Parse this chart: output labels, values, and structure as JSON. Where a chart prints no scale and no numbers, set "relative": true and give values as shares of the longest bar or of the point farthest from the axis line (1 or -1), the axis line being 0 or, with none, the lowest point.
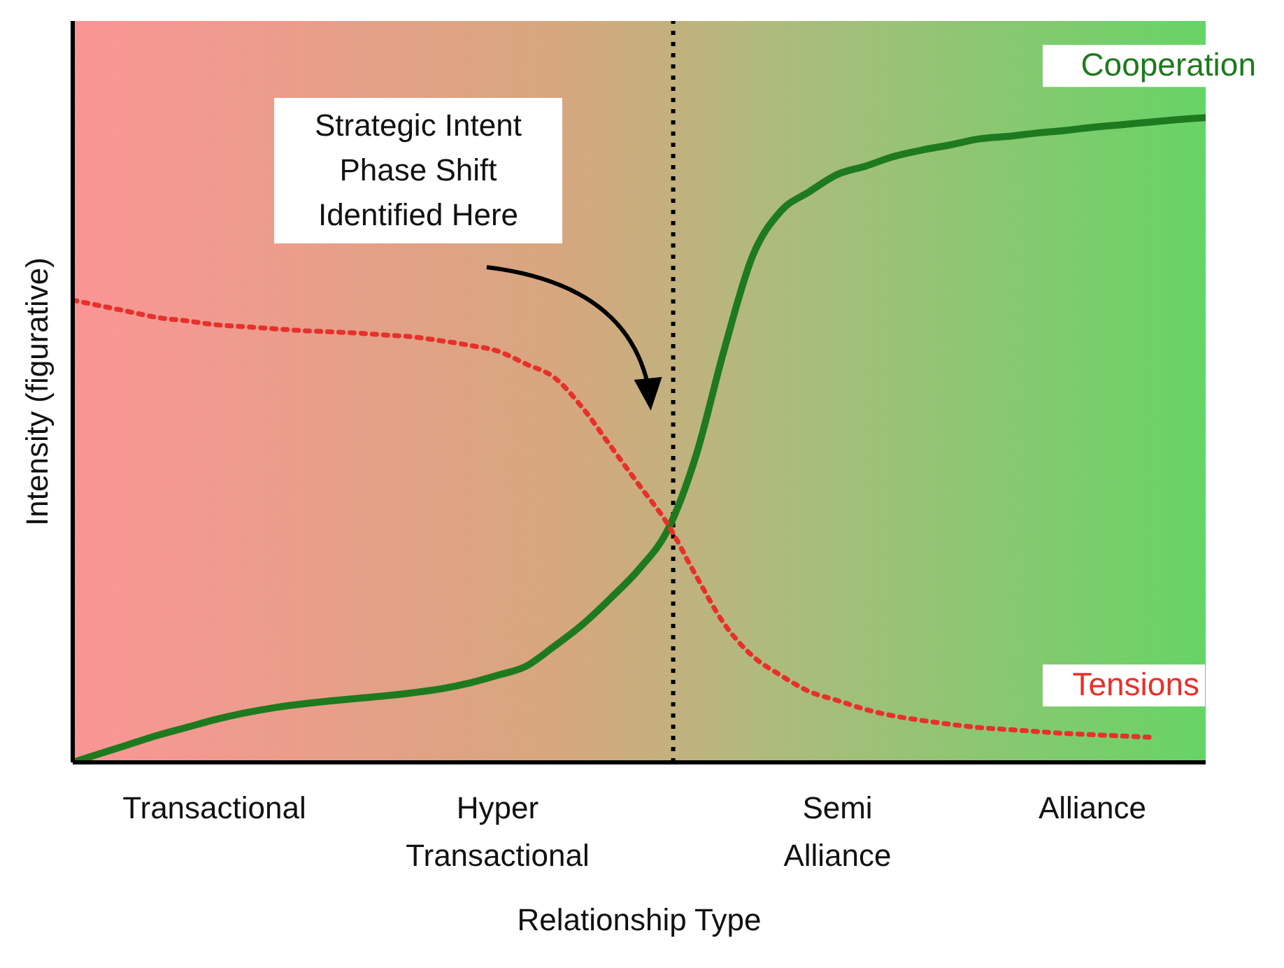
{
  "chart_data": {
    "type": "line",
    "relative": true,
    "xlabel": "Relationship Type",
    "ylabel": "Intensity (figurative)",
    "categories": [
      null,
      null,
      null,
      null,
      null,
      "Transactional",
      null,
      null,
      null,
      null,
      null,
      null,
      null,
      null,
      null,
      "Hyper Transactional",
      null,
      null,
      null,
      null,
      null,
      null,
      null,
      null,
      null,
      null,
      null,
      "Semi Alliance",
      null,
      null,
      null,
      null,
      null,
      null,
      null,
      null,
      "Alliance",
      null,
      null,
      null,
      null
    ],
    "series": [
      {
        "name": "Cooperation",
        "color": "#1e7a1e",
        "line_style": "solid",
        "values": [
          0,
          0.014,
          0.028,
          0.042,
          0.054,
          0.066,
          0.076,
          0.084,
          0.09,
          0.095,
          0.099,
          0.103,
          0.108,
          0.114,
          0.123,
          0.135,
          0.149,
          0.18,
          0.214,
          0.255,
          0.3,
          0.36,
          0.475,
          0.64,
          0.785,
          0.855,
          0.885,
          0.912,
          0.925,
          0.94,
          0.95,
          0.958,
          0.967,
          0.971,
          0.976,
          0.98,
          0.985,
          0.989,
          0.993,
          0.997,
          1
        ]
      },
      {
        "name": "Tensions",
        "color": "#e8302a",
        "line_style": "dotted",
        "values": [
          0.717,
          0.708,
          0.699,
          0.69,
          0.685,
          0.679,
          0.676,
          0.673,
          0.67,
          0.668,
          0.666,
          0.663,
          0.66,
          0.654,
          0.647,
          0.638,
          0.618,
          0.597,
          0.55,
          0.49,
          0.43,
          0.37,
          0.29,
          0.215,
          0.165,
          0.135,
          0.11,
          0.096,
          0.082,
          0.072,
          0.065,
          0.059,
          0.054,
          0.051,
          0.048,
          0.045,
          0.043,
          0.041,
          0.039,
          null,
          null
        ]
      }
    ],
    "annotations": [
      "Strategic Intent Phase Shift Identified Here"
    ],
    "grid": false,
    "legend": false,
    "marker": "none"
  }
}
